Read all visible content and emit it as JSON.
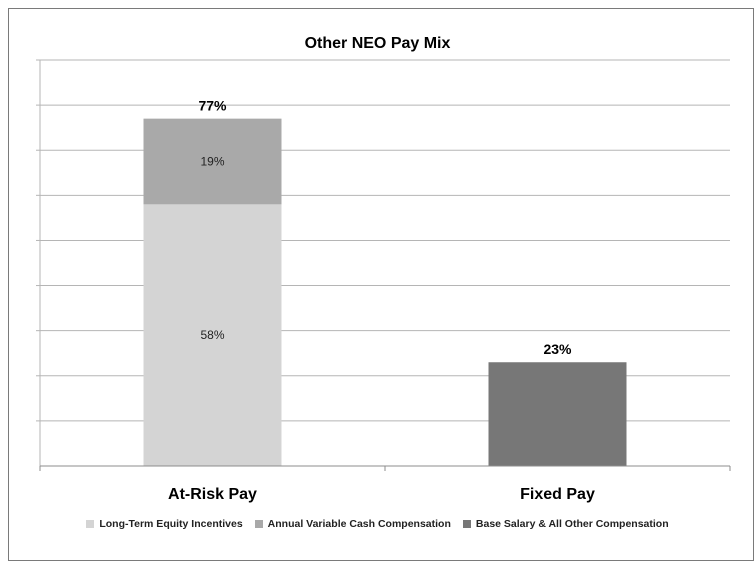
{
  "chart_data": {
    "type": "bar",
    "stacked": true,
    "title": "Other NEO Pay Mix",
    "categories": [
      "At-Risk Pay",
      "Fixed Pay"
    ],
    "series": [
      {
        "name": "Long-Term Equity Incentives",
        "values": [
          58,
          0
        ],
        "labels": [
          "58%",
          ""
        ],
        "color": "#d4d4d4"
      },
      {
        "name": "Annual Variable Cash Compensation",
        "values": [
          19,
          0
        ],
        "labels": [
          "19%",
          ""
        ],
        "color": "#a9a9a9"
      },
      {
        "name": "Base Salary & All Other Compensation",
        "values": [
          0,
          23
        ],
        "labels": [
          "",
          ""
        ],
        "color": "#777777"
      }
    ],
    "totals": [
      {
        "value": 77,
        "label": "77%"
      },
      {
        "value": 23,
        "label": "23%"
      }
    ],
    "ylim": [
      0,
      90
    ],
    "grid": true,
    "legend_position": "bottom"
  }
}
